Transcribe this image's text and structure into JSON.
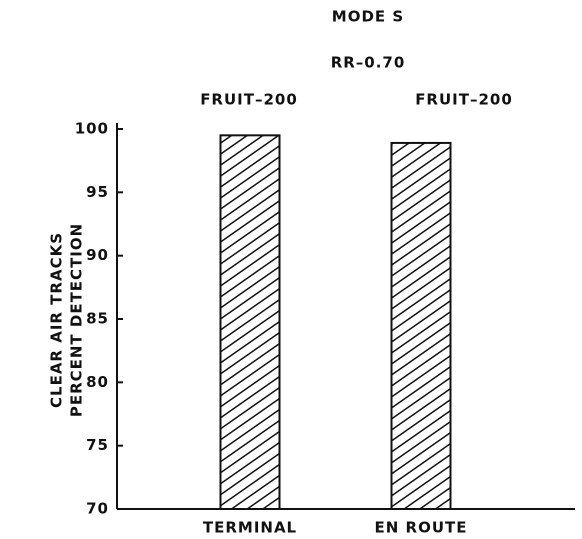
{
  "chart_data": {
    "type": "bar",
    "title": "MODE S",
    "subtitle": "RR–0.70",
    "annotations": [
      "FRUIT–200",
      "FRUIT–200"
    ],
    "y_label": [
      "CLEAR AIR TRACKS",
      "PERCENT DETECTION"
    ],
    "categories": [
      "TERMINAL",
      "EN ROUTE"
    ],
    "values": [
      99.5,
      98.9
    ],
    "color": "#111111",
    "hatch": true,
    "ylim": [
      70,
      100
    ],
    "yticks": [
      70,
      75,
      80,
      85,
      90,
      95,
      100
    ],
    "grid": false
  }
}
